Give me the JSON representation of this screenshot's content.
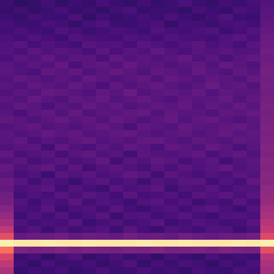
{
  "chart_data": {
    "type": "heatmap",
    "tick_labels": false,
    "color_range": [
      0,
      100
    ],
    "cells": [
      [
        20,
        17,
        19,
        22,
        18,
        21,
        19,
        23,
        20,
        18,
        22,
        19,
        21,
        24,
        20,
        19,
        22,
        20,
        23,
        26
      ],
      [
        19,
        22,
        18,
        20,
        23,
        19,
        21,
        18,
        22,
        24,
        19,
        21,
        20,
        18,
        23,
        21,
        19,
        24,
        22,
        27
      ],
      [
        21,
        19,
        23,
        21,
        20,
        24,
        18,
        22,
        19,
        21,
        23,
        20,
        24,
        21,
        19,
        22,
        25,
        21,
        20,
        28
      ],
      [
        23,
        21,
        20,
        24,
        22,
        19,
        23,
        25,
        21,
        20,
        22,
        24,
        19,
        23,
        22,
        20,
        23,
        24,
        22,
        29
      ],
      [
        22,
        24,
        22,
        21,
        25,
        23,
        20,
        22,
        24,
        23,
        21,
        25,
        23,
        22,
        24,
        25,
        21,
        23,
        26,
        30
      ],
      [
        24,
        22,
        25,
        23,
        21,
        26,
        24,
        23,
        22,
        25,
        24,
        22,
        26,
        24,
        23,
        22,
        25,
        27,
        24,
        31
      ],
      [
        25,
        27,
        23,
        26,
        24,
        22,
        27,
        25,
        26,
        23,
        27,
        25,
        23,
        26,
        28,
        24,
        26,
        23,
        27,
        32
      ],
      [
        26,
        24,
        28,
        25,
        27,
        26,
        23,
        28,
        24,
        27,
        25,
        29,
        26,
        24,
        27,
        26,
        28,
        25,
        26,
        33
      ],
      [
        24,
        28,
        26,
        29,
        25,
        28,
        27,
        24,
        29,
        26,
        28,
        25,
        27,
        30,
        25,
        28,
        24,
        27,
        29,
        32
      ],
      [
        27,
        25,
        28,
        26,
        30,
        24,
        28,
        29,
        26,
        30,
        27,
        28,
        25,
        27,
        29,
        26,
        30,
        28,
        25,
        33
      ],
      [
        28,
        26,
        24,
        29,
        27,
        29,
        25,
        27,
        30,
        28,
        25,
        29,
        28,
        26,
        30,
        27,
        25,
        29,
        27,
        34
      ],
      [
        26,
        29,
        27,
        25,
        28,
        26,
        30,
        28,
        25,
        27,
        29,
        26,
        30,
        28,
        26,
        29,
        28,
        26,
        30,
        33
      ],
      [
        27,
        25,
        29,
        28,
        26,
        30,
        27,
        24,
        29,
        26,
        28,
        30,
        27,
        25,
        28,
        31,
        27,
        29,
        26,
        34
      ],
      [
        25,
        28,
        26,
        30,
        29,
        27,
        25,
        29,
        27,
        31,
        26,
        28,
        29,
        27,
        30,
        26,
        29,
        27,
        28,
        33
      ],
      [
        28,
        26,
        30,
        27,
        25,
        29,
        28,
        30,
        26,
        28,
        30,
        27,
        25,
        29,
        27,
        28,
        30,
        26,
        29,
        34
      ],
      [
        26,
        29,
        27,
        24,
        28,
        26,
        30,
        27,
        29,
        25,
        27,
        29,
        28,
        30,
        26,
        29,
        27,
        30,
        27,
        35
      ],
      [
        27,
        24,
        28,
        29,
        26,
        30,
        25,
        28,
        27,
        29,
        30,
        26,
        29,
        27,
        28,
        25,
        29,
        28,
        30,
        34
      ],
      [
        29,
        27,
        25,
        28,
        30,
        27,
        29,
        26,
        30,
        28,
        25,
        28,
        30,
        26,
        29,
        30,
        27,
        25,
        28,
        35
      ],
      [
        26,
        28,
        29,
        26,
        27,
        25,
        28,
        30,
        27,
        24,
        29,
        27,
        26,
        30,
        28,
        27,
        29,
        30,
        27,
        36
      ],
      [
        28,
        25,
        27,
        30,
        28,
        29,
        26,
        27,
        29,
        30,
        27,
        25,
        28,
        29,
        26,
        28,
        30,
        27,
        29,
        35
      ],
      [
        27,
        29,
        24,
        27,
        25,
        28,
        30,
        26,
        28,
        26,
        29,
        30,
        27,
        25,
        29,
        27,
        26,
        29,
        28,
        36
      ],
      [
        25,
        27,
        28,
        22,
        29,
        26,
        24,
        28,
        25,
        29,
        27,
        24,
        29,
        28,
        25,
        30,
        28,
        24,
        27,
        37
      ],
      [
        29,
        24,
        26,
        28,
        23,
        27,
        29,
        25,
        27,
        22,
        28,
        26,
        25,
        27,
        29,
        24,
        27,
        29,
        25,
        36
      ],
      [
        26,
        28,
        23,
        25,
        28,
        24,
        26,
        29,
        22,
        27,
        25,
        29,
        27,
        23,
        26,
        28,
        22,
        26,
        28,
        38
      ],
      [
        30,
        25,
        27,
        29,
        24,
        28,
        22,
        26,
        28,
        25,
        23,
        27,
        24,
        28,
        25,
        27,
        29,
        25,
        27,
        37
      ],
      [
        28,
        23,
        25,
        21,
        27,
        25,
        28,
        24,
        26,
        29,
        27,
        22,
        28,
        25,
        23,
        26,
        24,
        28,
        26,
        39
      ],
      [
        31,
        27,
        22,
        26,
        24,
        20,
        25,
        27,
        23,
        25,
        21,
        26,
        24,
        27,
        28,
        22,
        26,
        23,
        29,
        38
      ],
      [
        30,
        24,
        26,
        28,
        22,
        26,
        23,
        21,
        27,
        24,
        26,
        28,
        21,
        25,
        24,
        27,
        23,
        26,
        25,
        40
      ],
      [
        33,
        22,
        25,
        23,
        27,
        24,
        27,
        25,
        22,
        28,
        23,
        24,
        26,
        22,
        27,
        25,
        28,
        24,
        27,
        41
      ],
      [
        34,
        26,
        21,
        25,
        23,
        28,
        22,
        26,
        24,
        21,
        25,
        27,
        23,
        26,
        21,
        24,
        22,
        27,
        23,
        42
      ],
      [
        38,
        24,
        23,
        27,
        20,
        24,
        25,
        22,
        27,
        23,
        20,
        24,
        26,
        22,
        25,
        27,
        24,
        21,
        26,
        45
      ],
      [
        42,
        21,
        25,
        22,
        26,
        21,
        24,
        27,
        20,
        25,
        26,
        22,
        24,
        27,
        23,
        21,
        25,
        26,
        24,
        47
      ],
      [
        46,
        25,
        22,
        24,
        23,
        27,
        20,
        23,
        25,
        22,
        24,
        27,
        21,
        23,
        26,
        24,
        22,
        23,
        27,
        50
      ],
      [
        52,
        23,
        26,
        21,
        25,
        22,
        24,
        26,
        21,
        27,
        23,
        20,
        25,
        24,
        22,
        26,
        25,
        21,
        24,
        53
      ],
      [
        62,
        30,
        32,
        31,
        33,
        30,
        32,
        31,
        30,
        33,
        31,
        32,
        30,
        33,
        31,
        30,
        32,
        31,
        33,
        60
      ],
      [
        97,
        95,
        95,
        96,
        95,
        95,
        96,
        95,
        95,
        95,
        96,
        95,
        95,
        96,
        95,
        95,
        95,
        96,
        95,
        97
      ],
      [
        70,
        36,
        34,
        35,
        37,
        34,
        36,
        35,
        34,
        36,
        35,
        37,
        34,
        35,
        36,
        34,
        37,
        35,
        34,
        62
      ],
      [
        58,
        20,
        23,
        18,
        22,
        25,
        19,
        21,
        24,
        20,
        22,
        18,
        23,
        21,
        19,
        24,
        20,
        22,
        21,
        50
      ],
      [
        52,
        22,
        18,
        24,
        20,
        21,
        23,
        19,
        22,
        25,
        19,
        23,
        20,
        24,
        22,
        18,
        23,
        20,
        24,
        47
      ],
      [
        48,
        19,
        22,
        20,
        23,
        18,
        21,
        24,
        20,
        21,
        24,
        20,
        22,
        19,
        23,
        21,
        19,
        24,
        22,
        45
      ]
    ]
  }
}
